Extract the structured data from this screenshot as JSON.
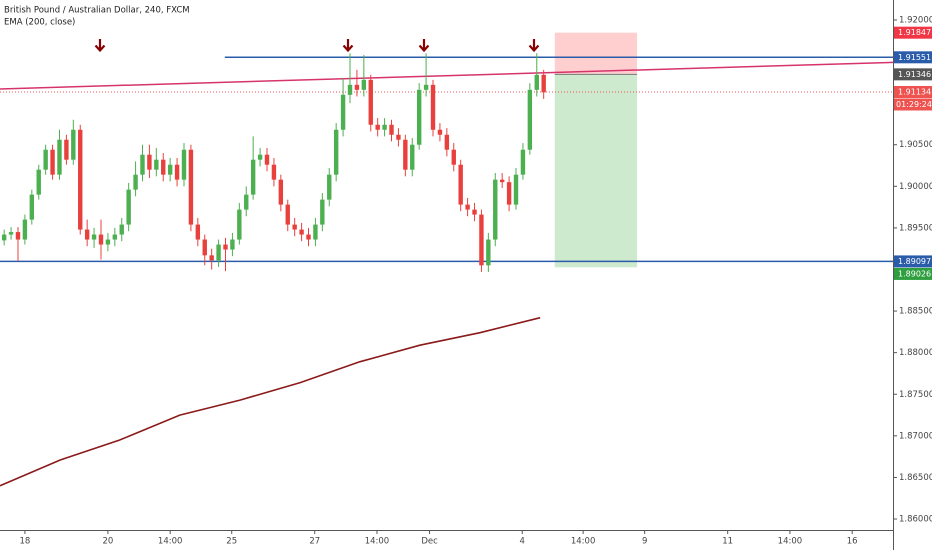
{
  "chart_data": {
    "type": "candlestick",
    "title": "British Pound / Australian Dollar, 240, FXCM",
    "up_color": "#4caf50",
    "down_color": "#e8413d",
    "xlim": [
      -3.6,
      125.5
    ],
    "ylim": [
      1.85868,
      1.9224
    ],
    "xticks": [
      {
        "value": 0,
        "label": "18"
      },
      {
        "value": 12,
        "label": "20"
      },
      {
        "value": 21,
        "label": "14:00"
      },
      {
        "value": 29.9,
        "label": "25"
      },
      {
        "value": 41.9,
        "label": "27"
      },
      {
        "value": 50.9,
        "label": "14:00"
      },
      {
        "value": 58.5,
        "label": "Dec"
      },
      {
        "value": 71.9,
        "label": "4"
      },
      {
        "value": 80.7,
        "label": "14:00"
      },
      {
        "value": 89.6,
        "label": "9"
      },
      {
        "value": 101.6,
        "label": "11"
      },
      {
        "value": 110.6,
        "label": "14:00"
      },
      {
        "value": 119.6,
        "label": "16"
      }
    ],
    "yticks": [
      {
        "value": 1.92,
        "label": "1.92000"
      },
      {
        "value": 1.905,
        "label": "1.90500"
      },
      {
        "value": 1.9,
        "label": "1.90000"
      },
      {
        "value": 1.895,
        "label": "1.89500"
      },
      {
        "value": 1.885,
        "label": "1.88500"
      },
      {
        "value": 1.88,
        "label": "1.88000"
      },
      {
        "value": 1.875,
        "label": "1.87500"
      },
      {
        "value": 1.87,
        "label": "1.87000"
      },
      {
        "value": 1.865,
        "label": "1.86500"
      },
      {
        "value": 1.86,
        "label": "1.86000"
      }
    ],
    "x": [
      -3,
      -2,
      -1,
      0,
      1,
      2,
      3,
      4,
      5,
      6,
      7,
      8,
      9,
      10,
      11,
      12,
      13,
      14,
      15,
      16,
      17,
      18,
      19,
      20,
      21,
      22,
      23,
      24,
      25,
      26,
      27,
      28,
      29,
      30,
      31,
      32,
      33,
      34,
      35,
      36,
      37,
      38,
      39,
      40,
      41,
      42,
      43,
      44,
      45,
      46,
      47,
      48,
      49,
      50,
      51,
      52,
      53,
      54,
      55,
      56,
      57,
      58,
      59,
      60,
      61,
      62,
      63,
      64,
      65,
      66,
      67,
      68,
      69,
      70,
      71,
      72,
      73,
      74,
      75
    ],
    "open": [
      1.8935,
      1.8942,
      1.8945,
      1.8936,
      1.896,
      1.899,
      1.902,
      1.9044,
      1.9014,
      1.9056,
      1.9032,
      1.9068,
      1.8948,
      1.8936,
      1.8942,
      1.893,
      1.8936,
      1.8942,
      1.8954,
      1.8996,
      1.9014,
      1.9038,
      1.902,
      1.9032,
      1.9014,
      1.9026,
      1.9008,
      1.9044,
      1.8954,
      1.8936,
      1.8917,
      1.8911,
      1.893,
      1.8924,
      1.8936,
      1.8972,
      1.899,
      1.9032,
      1.9038,
      1.9026,
      1.9008,
      1.8978,
      1.8954,
      1.8948,
      1.8942,
      1.8936,
      1.8954,
      1.8984,
      1.9014,
      1.9068,
      1.911,
      1.9122,
      1.9116,
      1.9128,
      1.9074,
      1.9068,
      1.9074,
      1.9062,
      1.9056,
      1.902,
      1.905,
      1.9116,
      1.9122,
      1.9068,
      1.9062,
      1.9044,
      1.9026,
      1.8978,
      1.8972,
      1.8966,
      1.8905,
      1.8936,
      1.9008,
      1.9005,
      1.8978,
      1.9014,
      1.9044,
      1.9116,
      1.9134
    ],
    "high": [
      1.8948,
      1.8951,
      1.8951,
      1.8966,
      1.8996,
      1.9026,
      1.905,
      1.905,
      1.9068,
      1.9062,
      1.908,
      1.9074,
      1.896,
      1.895,
      1.896,
      1.8944,
      1.895,
      1.8962,
      1.9004,
      1.903,
      1.905,
      1.905,
      1.9046,
      1.904,
      1.9034,
      1.9034,
      1.9052,
      1.905,
      1.8962,
      1.8942,
      1.8925,
      1.8936,
      1.8938,
      1.8944,
      1.898,
      1.9,
      1.906,
      1.9046,
      1.9046,
      1.9034,
      1.9014,
      1.8984,
      1.8962,
      1.8956,
      1.895,
      1.8962,
      1.8992,
      1.9022,
      1.9076,
      1.913,
      1.916,
      1.914,
      1.9158,
      1.9134,
      1.9082,
      1.9082,
      1.908,
      1.907,
      1.9062,
      1.9058,
      1.9124,
      1.916,
      1.9128,
      1.9076,
      1.907,
      1.9052,
      1.9032,
      1.8986,
      1.898,
      1.8972,
      1.8944,
      1.9016,
      1.9016,
      1.9012,
      1.9022,
      1.9052,
      1.9124,
      1.916,
      1.914
    ],
    "low": [
      1.8929,
      1.8936,
      1.891,
      1.893,
      1.8954,
      1.8984,
      1.9014,
      1.9008,
      1.9008,
      1.9026,
      1.9026,
      1.8942,
      1.8928,
      1.8926,
      1.8912,
      1.8922,
      1.8928,
      1.8934,
      1.8946,
      1.8988,
      1.9006,
      1.901,
      1.9012,
      1.9006,
      1.9006,
      1.9,
      1.9,
      1.8946,
      1.8928,
      1.8905,
      1.89,
      1.8903,
      1.8898,
      1.8916,
      1.893,
      1.8964,
      1.8984,
      1.9024,
      1.9018,
      1.9,
      1.897,
      1.8946,
      1.894,
      1.8934,
      1.8928,
      1.8928,
      1.8946,
      1.8976,
      1.9006,
      1.906,
      1.91,
      1.9108,
      1.9108,
      1.9066,
      1.906,
      1.906,
      1.9054,
      1.9048,
      1.9012,
      1.9012,
      1.9044,
      1.9108,
      1.906,
      1.9054,
      1.9036,
      1.9018,
      1.897,
      1.8964,
      1.8958,
      1.8897,
      1.8897,
      1.8928,
      1.8998,
      1.897,
      1.8972,
      1.9008,
      1.9038,
      1.9108,
      1.9105
    ],
    "close": [
      1.8942,
      1.8945,
      1.8936,
      1.896,
      1.899,
      1.902,
      1.9044,
      1.9014,
      1.9056,
      1.9032,
      1.9068,
      1.8948,
      1.8936,
      1.8942,
      1.893,
      1.8936,
      1.8942,
      1.8954,
      1.8996,
      1.9014,
      1.9038,
      1.902,
      1.9032,
      1.9014,
      1.9026,
      1.9008,
      1.9044,
      1.8954,
      1.8936,
      1.8917,
      1.8911,
      1.893,
      1.8924,
      1.8936,
      1.8972,
      1.899,
      1.9032,
      1.9038,
      1.9026,
      1.9008,
      1.8978,
      1.8954,
      1.8948,
      1.8942,
      1.8936,
      1.8954,
      1.8984,
      1.9014,
      1.9068,
      1.911,
      1.9122,
      1.9116,
      1.9128,
      1.9074,
      1.9068,
      1.9074,
      1.9062,
      1.9056,
      1.902,
      1.905,
      1.9116,
      1.9122,
      1.9068,
      1.9062,
      1.9044,
      1.9026,
      1.8978,
      1.8972,
      1.8966,
      1.8905,
      1.8936,
      1.9008,
      1.9005,
      1.8978,
      1.9014,
      1.9044,
      1.9116,
      1.9134,
      1.9113
    ],
    "series": [
      {
        "name": "EMA (200, close)",
        "color": "#8b1a1a",
        "x": [
          -3.6,
          5.1,
          13.7,
          22.4,
          31.1,
          39.8,
          48.4,
          57.1,
          65.8,
          74.5
        ],
        "values": [
          1.864,
          1.8671,
          1.8695,
          1.8725,
          1.8743,
          1.8764,
          1.8789,
          1.8809,
          1.8824,
          1.8842
        ]
      }
    ],
    "trendline": {
      "color": "#d6336c",
      "x": [
        -3.6,
        125.5
      ],
      "values": [
        1.9117,
        1.9149
      ]
    },
    "hlines": [
      {
        "value": 1.91551,
        "label": "1.91551",
        "color": "#2a5caa",
        "from": 28.9
      },
      {
        "value": 1.89097,
        "label": "1.89097",
        "color": "#2a5caa",
        "from": -3.6
      }
    ],
    "current": {
      "value": 1.91134,
      "label": "1.91134",
      "countdown": "01:29:24",
      "color": "#ef5350"
    },
    "position": {
      "x": [
        76.6,
        88.5
      ],
      "stop": {
        "value": 1.91847,
        "label": "1.91847"
      },
      "entry": {
        "value": 1.91346,
        "label": "1.91346"
      },
      "target": {
        "value": 1.89026,
        "label": "1.89026"
      }
    }
  }
}
